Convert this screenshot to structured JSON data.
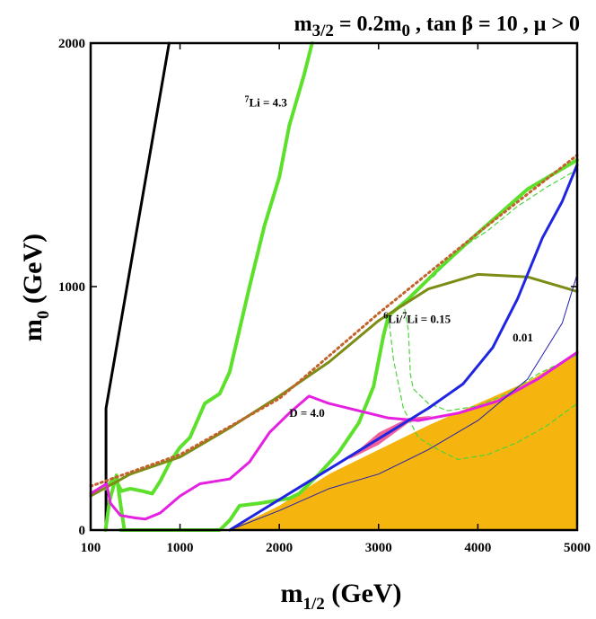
{
  "chart_data": {
    "type": "line",
    "title": {
      "prefix": "m",
      "prefix_sub": "3/2",
      "eq": " = 0.2m",
      "eq_sub": "0",
      "rest": " , tan β = 10 ,  μ > 0"
    },
    "xlabel": {
      "main": "m",
      "sub": "1/2",
      "unit": " (GeV)"
    },
    "ylabel": {
      "main": "m",
      "sub": "0",
      "unit": " (GeV)"
    },
    "xlim": [
      100,
      5000
    ],
    "ylim": [
      0,
      2000
    ],
    "xticks": [
      100,
      1000,
      2000,
      3000,
      4000,
      5000
    ],
    "xtick_labels": [
      "100",
      "1000",
      "2000",
      "3000",
      "4000",
      "5000"
    ],
    "yticks": [
      0,
      1000,
      2000
    ],
    "ytick_labels": [
      "0",
      "1000",
      "2000"
    ],
    "colors": {
      "orange": "#f5b50e",
      "pink": "#f0609a",
      "green": "#5de02c",
      "blue": "#1f25e0",
      "olive": "#7d8c14",
      "brown": "#c4622c",
      "magenta": "#e520e0",
      "black": "#000000",
      "dashed_green": "#4cd43a",
      "thin_blue": "#2020b0"
    },
    "regions": [
      {
        "name": "excluded-region",
        "color": "orange",
        "points": [
          [
            1500,
            0
          ],
          [
            2000,
            100
          ],
          [
            2500,
            230
          ],
          [
            3000,
            330
          ],
          [
            3500,
            430
          ],
          [
            4000,
            520
          ],
          [
            4500,
            610
          ],
          [
            5000,
            730
          ],
          [
            5000,
            0
          ]
        ]
      },
      {
        "name": "preferred-region",
        "color": "pink",
        "points": [
          [
            2700,
            290
          ],
          [
            3000,
            350
          ],
          [
            3300,
            440
          ],
          [
            3550,
            470
          ],
          [
            3300,
            460
          ],
          [
            3000,
            400
          ],
          [
            2800,
            330
          ]
        ]
      }
    ],
    "series": [
      {
        "name": "black-boundary",
        "color": "black",
        "width": 3,
        "dash": "",
        "points": [
          [
            255,
            0
          ],
          [
            255,
            500
          ],
          [
            890,
            2000
          ]
        ]
      },
      {
        "name": "green-7li-left",
        "color": "green",
        "width": 4,
        "dash": "",
        "points": [
          [
            250,
            0
          ],
          [
            290,
            120
          ],
          [
            360,
            225
          ],
          [
            410,
            80
          ],
          [
            440,
            0
          ]
        ]
      },
      {
        "name": "green-7li-low-loop",
        "color": "green",
        "width": 4,
        "dash": "",
        "points": [
          [
            250,
            170
          ],
          [
            330,
            210
          ],
          [
            360,
            200
          ],
          [
            410,
            160
          ],
          [
            500,
            170
          ],
          [
            620,
            160
          ],
          [
            720,
            150
          ],
          [
            800,
            200
          ],
          [
            900,
            280
          ],
          [
            1000,
            340
          ],
          [
            1100,
            380
          ],
          [
            1250,
            520
          ],
          [
            1400,
            560
          ],
          [
            1500,
            650
          ],
          [
            1700,
            1000
          ],
          [
            1850,
            1250
          ],
          [
            2000,
            1450
          ],
          [
            2100,
            1660
          ],
          [
            2250,
            1870
          ],
          [
            2330,
            2000
          ]
        ]
      },
      {
        "name": "green-7li-bottom",
        "color": "green",
        "width": 4,
        "dash": "",
        "points": [
          [
            400,
            0
          ],
          [
            1400,
            0
          ],
          [
            1500,
            40
          ],
          [
            1600,
            100
          ],
          [
            1800,
            110
          ],
          [
            1950,
            120
          ],
          [
            2100,
            130
          ],
          [
            2200,
            150
          ],
          [
            2400,
            230
          ],
          [
            2600,
            320
          ],
          [
            2800,
            440
          ],
          [
            2950,
            590
          ],
          [
            3050,
            800
          ],
          [
            3100,
            880
          ],
          [
            3300,
            950
          ],
          [
            3600,
            1070
          ],
          [
            4000,
            1220
          ],
          [
            4500,
            1400
          ],
          [
            5000,
            1520
          ]
        ]
      },
      {
        "name": "green-dashed-1",
        "color": "dashed_green",
        "width": 1.2,
        "dash": "5,4",
        "points": [
          [
            3100,
            880
          ],
          [
            3150,
            700
          ],
          [
            3250,
            500
          ],
          [
            3400,
            380
          ],
          [
            3600,
            330
          ],
          [
            3800,
            290
          ],
          [
            4100,
            310
          ],
          [
            4400,
            360
          ],
          [
            4700,
            430
          ],
          [
            5000,
            520
          ]
        ]
      },
      {
        "name": "green-dashed-2",
        "color": "dashed_green",
        "width": 1.2,
        "dash": "5,4",
        "points": [
          [
            3250,
            940
          ],
          [
            3300,
            820
          ],
          [
            3320,
            640
          ],
          [
            3350,
            580
          ],
          [
            3500,
            520
          ],
          [
            3700,
            490
          ],
          [
            4000,
            510
          ],
          [
            4300,
            560
          ],
          [
            4600,
            640
          ],
          [
            5000,
            720
          ]
        ]
      },
      {
        "name": "green-dashed-3",
        "color": "dashed_green",
        "width": 1.2,
        "dash": "5,4",
        "points": [
          [
            3550,
            1040
          ],
          [
            3800,
            1150
          ],
          [
            4100,
            1230
          ],
          [
            4400,
            1330
          ],
          [
            4700,
            1410
          ],
          [
            5000,
            1480
          ]
        ]
      },
      {
        "name": "olive-curve",
        "color": "olive",
        "width": 3,
        "dash": "",
        "points": [
          [
            100,
            140
          ],
          [
            500,
            230
          ],
          [
            1000,
            300
          ],
          [
            1500,
            420
          ],
          [
            2000,
            550
          ],
          [
            2500,
            690
          ],
          [
            3000,
            860
          ],
          [
            3500,
            990
          ],
          [
            4000,
            1050
          ],
          [
            4500,
            1040
          ],
          [
            5000,
            980
          ]
        ]
      },
      {
        "name": "brown-dotted",
        "color": "brown",
        "width": 3,
        "dash": "2,4",
        "points": [
          [
            100,
            180
          ],
          [
            1000,
            310
          ],
          [
            2000,
            540
          ],
          [
            3000,
            890
          ],
          [
            4000,
            1220
          ],
          [
            5000,
            1540
          ]
        ]
      },
      {
        "name": "magenta-d4",
        "color": "magenta",
        "width": 3,
        "dash": "",
        "points": [
          [
            100,
            150
          ],
          [
            260,
            190
          ],
          [
            300,
            110
          ],
          [
            400,
            60
          ],
          [
            550,
            50
          ],
          [
            650,
            45
          ],
          [
            800,
            70
          ],
          [
            1000,
            140
          ],
          [
            1200,
            190
          ],
          [
            1350,
            200
          ],
          [
            1500,
            210
          ],
          [
            1700,
            280
          ],
          [
            1900,
            400
          ],
          [
            2100,
            480
          ],
          [
            2300,
            550
          ],
          [
            2500,
            520
          ],
          [
            2800,
            490
          ],
          [
            3100,
            460
          ],
          [
            3400,
            450
          ],
          [
            3800,
            480
          ],
          [
            4200,
            530
          ],
          [
            4600,
            620
          ],
          [
            5000,
            730
          ]
        ]
      },
      {
        "name": "blue-li-ratio",
        "color": "blue",
        "width": 3,
        "dash": "",
        "points": [
          [
            1500,
            0
          ],
          [
            1900,
            100
          ],
          [
            2300,
            200
          ],
          [
            2700,
            300
          ],
          [
            3100,
            400
          ],
          [
            3500,
            500
          ],
          [
            3850,
            600
          ],
          [
            4150,
            750
          ],
          [
            4400,
            950
          ],
          [
            4650,
            1200
          ],
          [
            4850,
            1350
          ],
          [
            5000,
            1500
          ]
        ]
      },
      {
        "name": "thin-blue-001",
        "color": "thin_blue",
        "width": 1,
        "dash": "",
        "points": [
          [
            1500,
            0
          ],
          [
            2000,
            80
          ],
          [
            2500,
            170
          ],
          [
            3000,
            230
          ],
          [
            3500,
            330
          ],
          [
            4000,
            450
          ],
          [
            4500,
            620
          ],
          [
            4850,
            850
          ],
          [
            5000,
            1050
          ]
        ]
      }
    ],
    "annotations": [
      {
        "name": "label-7li",
        "sup": "7",
        "text": "Li = 4.3",
        "x": 1650,
        "y": 1740
      },
      {
        "name": "label-6li-7li",
        "sup": "6",
        "text": "Li/",
        "sup2": "7",
        "text2": "Li = 0.15",
        "x": 3050,
        "y": 850
      },
      {
        "name": "label-001",
        "text": "0.01",
        "x": 4350,
        "y": 775
      },
      {
        "name": "label-d4",
        "text": "D = 4.0",
        "x": 2100,
        "y": 465
      }
    ]
  }
}
